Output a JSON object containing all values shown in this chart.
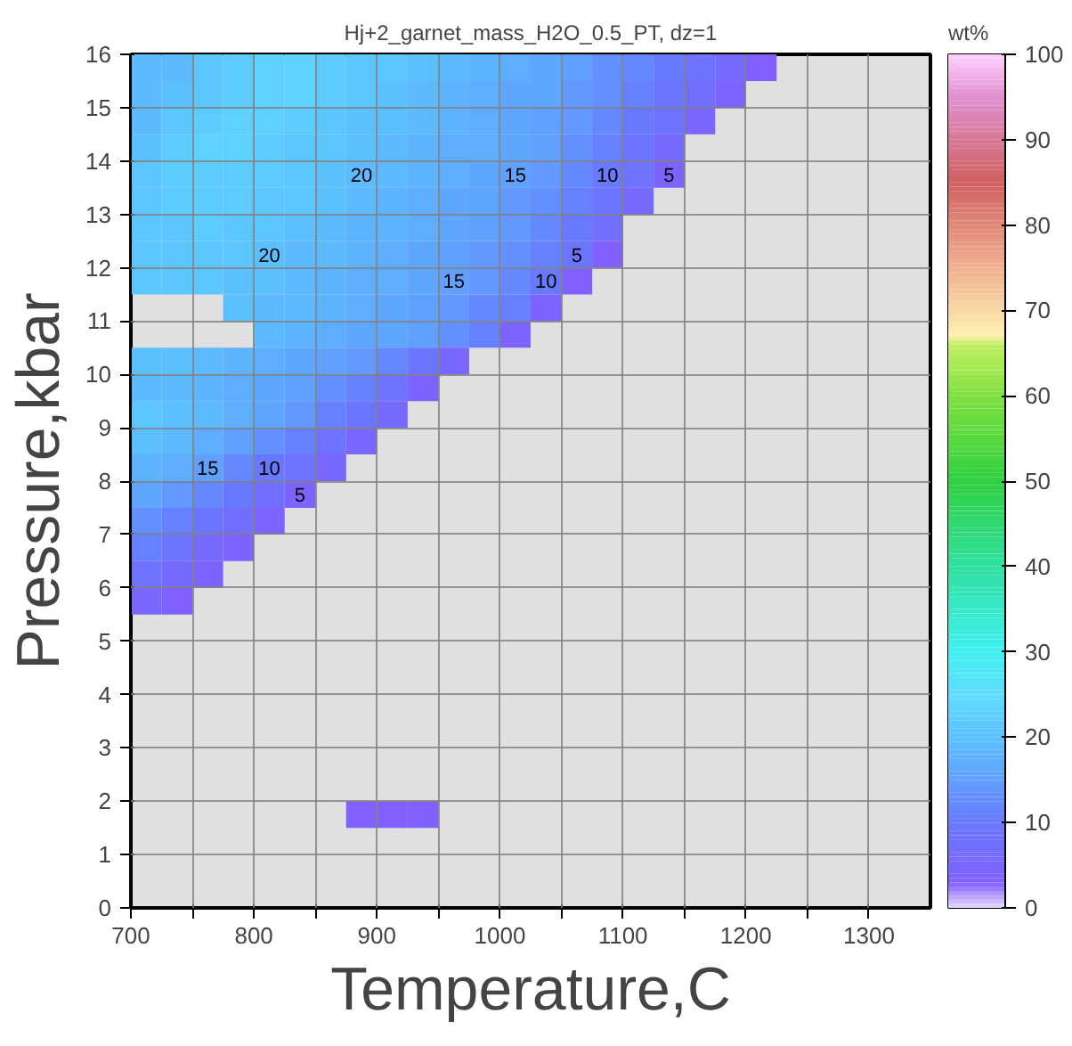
{
  "chart_data": {
    "type": "scatter",
    "marker": "square",
    "title": "Hj+2_garnet_mass_H2O_0.5_PT, dz=1",
    "xlabel": "Temperature,C",
    "ylabel": "Pressure,kbar",
    "clabel": "wt%",
    "xlim": [
      700,
      1350
    ],
    "ylim": [
      0,
      16
    ],
    "xticks": [
      700,
      {
        "value": 750,
        "label": null
      },
      800,
      {
        "value": 850,
        "label": null
      },
      900,
      {
        "value": 950,
        "label": null
      },
      1000,
      {
        "value": 1050,
        "label": null
      },
      1100,
      {
        "value": 1150,
        "label": null
      },
      1200,
      {
        "value": 1250,
        "label": null
      },
      1300
    ],
    "yticks": [
      0,
      1,
      2,
      3,
      4,
      5,
      6,
      7,
      8,
      9,
      10,
      11,
      12,
      13,
      14,
      15,
      16
    ],
    "clim": [
      0,
      100
    ],
    "cticks": [
      0,
      10,
      20,
      30,
      40,
      50,
      60,
      70,
      80,
      90,
      100
    ],
    "grid": true,
    "x": [
      712.5,
      737.5,
      762.5,
      787.5,
      812.5,
      837.5,
      862.5,
      887.5,
      912.5,
      937.5,
      962.5,
      987.5,
      1012.5,
      1037.5,
      1062.5,
      1087.5,
      1112.5,
      1137.5,
      1162.5,
      1187.5,
      1212.5,
      712.5,
      737.5,
      762.5,
      787.5,
      812.5,
      837.5,
      862.5,
      887.5,
      912.5,
      937.5,
      962.5,
      987.5,
      1012.5,
      1037.5,
      1062.5,
      1087.5,
      1112.5,
      1137.5,
      1162.5,
      1187.5,
      712.5,
      737.5,
      762.5,
      787.5,
      812.5,
      837.5,
      862.5,
      887.5,
      912.5,
      937.5,
      962.5,
      987.5,
      1012.5,
      1037.5,
      1062.5,
      1087.5,
      1112.5,
      1137.5,
      1162.5,
      712.5,
      737.5,
      762.5,
      787.5,
      812.5,
      837.5,
      862.5,
      887.5,
      912.5,
      937.5,
      962.5,
      987.5,
      1012.5,
      1037.5,
      1062.5,
      1087.5,
      1112.5,
      1137.5,
      712.5,
      737.5,
      762.5,
      787.5,
      812.5,
      837.5,
      862.5,
      887.5,
      912.5,
      937.5,
      962.5,
      987.5,
      1012.5,
      1037.5,
      1062.5,
      1087.5,
      1112.5,
      1137.5,
      712.5,
      737.5,
      762.5,
      787.5,
      812.5,
      837.5,
      862.5,
      887.5,
      912.5,
      937.5,
      962.5,
      987.5,
      1012.5,
      1037.5,
      1062.5,
      1087.5,
      1112.5,
      712.5,
      737.5,
      762.5,
      787.5,
      812.5,
      837.5,
      862.5,
      887.5,
      912.5,
      937.5,
      962.5,
      987.5,
      1012.5,
      1037.5,
      1062.5,
      1087.5,
      712.5,
      737.5,
      762.5,
      787.5,
      812.5,
      837.5,
      862.5,
      887.5,
      912.5,
      937.5,
      962.5,
      987.5,
      1012.5,
      1037.5,
      1062.5,
      1087.5,
      712.5,
      737.5,
      762.5,
      787.5,
      812.5,
      837.5,
      862.5,
      887.5,
      912.5,
      937.5,
      962.5,
      987.5,
      1012.5,
      1037.5,
      1062.5,
      787.5,
      812.5,
      837.5,
      862.5,
      887.5,
      912.5,
      937.5,
      962.5,
      987.5,
      1012.5,
      1037.5,
      812.5,
      837.5,
      862.5,
      887.5,
      912.5,
      937.5,
      962.5,
      987.5,
      1012.5,
      712.5,
      737.5,
      762.5,
      787.5,
      812.5,
      837.5,
      862.5,
      887.5,
      912.5,
      937.5,
      962.5,
      712.5,
      737.5,
      762.5,
      787.5,
      812.5,
      837.5,
      862.5,
      887.5,
      912.5,
      937.5,
      712.5,
      737.5,
      762.5,
      787.5,
      812.5,
      837.5,
      862.5,
      887.5,
      912.5,
      712.5,
      737.5,
      762.5,
      787.5,
      812.5,
      837.5,
      862.5,
      887.5,
      712.5,
      737.5,
      762.5,
      787.5,
      812.5,
      837.5,
      862.5,
      712.5,
      737.5,
      762.5,
      787.5,
      812.5,
      837.5,
      712.5,
      737.5,
      762.5,
      787.5,
      812.5,
      712.5,
      737.5,
      762.5,
      787.5,
      712.5,
      737.5,
      762.5,
      712.5,
      737.5,
      887.5,
      912.5,
      937.5
    ],
    "values": [
      15.75,
      15.75,
      15.75,
      15.75,
      15.75,
      15.75,
      15.75,
      15.75,
      15.75,
      15.75,
      15.75,
      15.75,
      15.75,
      15.75,
      15.75,
      15.75,
      15.75,
      15.75,
      15.75,
      15.75,
      15.75,
      15.25,
      15.25,
      15.25,
      15.25,
      15.25,
      15.25,
      15.25,
      15.25,
      15.25,
      15.25,
      15.25,
      15.25,
      15.25,
      15.25,
      15.25,
      15.25,
      15.25,
      15.25,
      15.25,
      15.25,
      14.75,
      14.75,
      14.75,
      14.75,
      14.75,
      14.75,
      14.75,
      14.75,
      14.75,
      14.75,
      14.75,
      14.75,
      14.75,
      14.75,
      14.75,
      14.75,
      14.75,
      14.75,
      14.75,
      14.25,
      14.25,
      14.25,
      14.25,
      14.25,
      14.25,
      14.25,
      14.25,
      14.25,
      14.25,
      14.25,
      14.25,
      14.25,
      14.25,
      14.25,
      14.25,
      14.25,
      14.25,
      13.75,
      13.75,
      13.75,
      13.75,
      13.75,
      13.75,
      13.75,
      13.75,
      13.75,
      13.75,
      13.75,
      13.75,
      13.75,
      13.75,
      13.75,
      13.75,
      13.75,
      13.75,
      13.25,
      13.25,
      13.25,
      13.25,
      13.25,
      13.25,
      13.25,
      13.25,
      13.25,
      13.25,
      13.25,
      13.25,
      13.25,
      13.25,
      13.25,
      13.25,
      13.25,
      12.75,
      12.75,
      12.75,
      12.75,
      12.75,
      12.75,
      12.75,
      12.75,
      12.75,
      12.75,
      12.75,
      12.75,
      12.75,
      12.75,
      12.75,
      12.75,
      12.25,
      12.25,
      12.25,
      12.25,
      12.25,
      12.25,
      12.25,
      12.25,
      12.25,
      12.25,
      12.25,
      12.25,
      12.25,
      12.25,
      12.25,
      12.25,
      11.75,
      11.75,
      11.75,
      11.75,
      11.75,
      11.75,
      11.75,
      11.75,
      11.75,
      11.75,
      11.75,
      11.75,
      11.75,
      11.75,
      11.75,
      11.25,
      11.25,
      11.25,
      11.25,
      11.25,
      11.25,
      11.25,
      11.25,
      11.25,
      11.25,
      11.25,
      10.75,
      10.75,
      10.75,
      10.75,
      10.75,
      10.75,
      10.75,
      10.75,
      10.75,
      10.25,
      10.25,
      10.25,
      10.25,
      10.25,
      10.25,
      10.25,
      10.25,
      10.25,
      10.25,
      10.25,
      9.75,
      9.75,
      9.75,
      9.75,
      9.75,
      9.75,
      9.75,
      9.75,
      9.75,
      9.75,
      9.25,
      9.25,
      9.25,
      9.25,
      9.25,
      9.25,
      9.25,
      9.25,
      9.25,
      8.75,
      8.75,
      8.75,
      8.75,
      8.75,
      8.75,
      8.75,
      8.75,
      8.25,
      8.25,
      8.25,
      8.25,
      8.25,
      8.25,
      8.25,
      7.75,
      7.75,
      7.75,
      7.75,
      7.75,
      7.75,
      7.25,
      7.25,
      7.25,
      7.25,
      7.25,
      6.75,
      6.75,
      6.75,
      6.75,
      6.25,
      6.25,
      6.25,
      5.75,
      5.75,
      1.75,
      1.75,
      1.75
    ],
    "cvalues": [
      19,
      19,
      21,
      22,
      23,
      23,
      22,
      21,
      21,
      20,
      19,
      18,
      17,
      16,
      15,
      13,
      12,
      10,
      8,
      6,
      3,
      19,
      20,
      21,
      22,
      23,
      23,
      22,
      21,
      20,
      19,
      18,
      17,
      16,
      16,
      14,
      13,
      11,
      9,
      7,
      4,
      19,
      21,
      22,
      23,
      23,
      22,
      21,
      20,
      20,
      19,
      18,
      17,
      16,
      15,
      14,
      12,
      10,
      8,
      5,
      20,
      22,
      23,
      23,
      22,
      21,
      21,
      20,
      19,
      18,
      17,
      17,
      16,
      15,
      13,
      11,
      9,
      6,
      21,
      22,
      22,
      22,
      22,
      21,
      20,
      19,
      19,
      18,
      17,
      16,
      15,
      14,
      12,
      10,
      8,
      4,
      21,
      22,
      22,
      22,
      21,
      21,
      20,
      19,
      18,
      17,
      16,
      16,
      14,
      13,
      11,
      9,
      6,
      21,
      21,
      22,
      21,
      21,
      20,
      19,
      18,
      18,
      17,
      16,
      15,
      14,
      12,
      10,
      7,
      21,
      21,
      21,
      21,
      20,
      19,
      19,
      18,
      17,
      16,
      15,
      14,
      13,
      11,
      9,
      3,
      21,
      21,
      21,
      20,
      20,
      19,
      18,
      17,
      17,
      16,
      15,
      14,
      12,
      10,
      3,
      20,
      19,
      19,
      18,
      17,
      16,
      15,
      14,
      12,
      11,
      4,
      19,
      18,
      17,
      16,
      16,
      15,
      13,
      11,
      4,
      20,
      20,
      19,
      18,
      17,
      16,
      15,
      14,
      12,
      9,
      5,
      19,
      19,
      18,
      17,
      16,
      15,
      13,
      11,
      8,
      4,
      21,
      20,
      19,
      17,
      16,
      14,
      11,
      9,
      6,
      20,
      19,
      17,
      15,
      13,
      11,
      8,
      5,
      18,
      17,
      15,
      12,
      10,
      8,
      5,
      16,
      14,
      12,
      10,
      7,
      4,
      13,
      11,
      9,
      7,
      4,
      11,
      9,
      6,
      4,
      8,
      6,
      4,
      5,
      3,
      3,
      3,
      3
    ],
    "annotations": [
      {
        "text": "20",
        "x": 887.5,
        "y": 13.75
      },
      {
        "text": "20",
        "x": 812.5,
        "y": 12.25
      },
      {
        "text": "15",
        "x": 1012.5,
        "y": 13.75
      },
      {
        "text": "15",
        "x": 962.5,
        "y": 11.75
      },
      {
        "text": "10",
        "x": 1087.5,
        "y": 13.75
      },
      {
        "text": "10",
        "x": 1037.5,
        "y": 11.75
      },
      {
        "text": "5",
        "x": 1137.5,
        "y": 13.75
      },
      {
        "text": "5",
        "x": 1062.5,
        "y": 12.25
      },
      {
        "text": "15",
        "x": 762.5,
        "y": 8.25
      },
      {
        "text": "10",
        "x": 812.5,
        "y": 8.25
      },
      {
        "text": "5",
        "x": 837.5,
        "y": 7.75
      }
    ]
  }
}
